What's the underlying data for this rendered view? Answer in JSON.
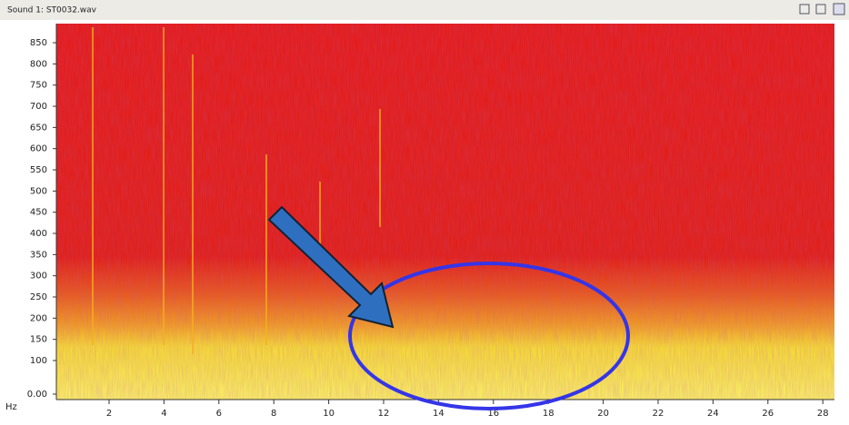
{
  "window": {
    "title": "Sound 1: ST0032.wav"
  },
  "y_axis": {
    "unit": "Hz",
    "labels": [
      "0.00",
      "100",
      "150",
      "200",
      "250",
      "300",
      "350",
      "400",
      "450",
      "500",
      "550",
      "600",
      "650",
      "700",
      "750",
      "800",
      "850"
    ]
  },
  "x_axis": {
    "labels": [
      "2",
      "4",
      "6",
      "8",
      "10",
      "12",
      "14",
      "16",
      "18",
      "20",
      "22",
      "24",
      "26",
      "28"
    ]
  }
}
